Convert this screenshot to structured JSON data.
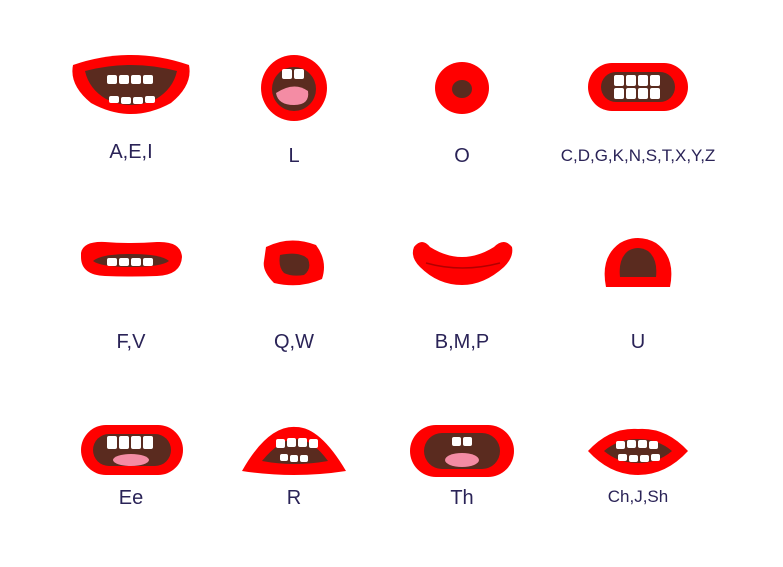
{
  "colors": {
    "lip": "#ff0000",
    "inner": "#5a2b1f",
    "teeth": "#ffffff",
    "tongue": "#f48ca4",
    "label": "#2a2357",
    "background": "#ffffff"
  },
  "mouths": [
    {
      "label": "A,E,I"
    },
    {
      "label": "L"
    },
    {
      "label": "O"
    },
    {
      "label": "C,D,G,K,N,S,T,X,Y,Z"
    },
    {
      "label": "F,V"
    },
    {
      "label": "Q,W"
    },
    {
      "label": "B,M,P"
    },
    {
      "label": "U"
    },
    {
      "label": "Ee"
    },
    {
      "label": "R"
    },
    {
      "label": "Th"
    },
    {
      "label": "Ch,J,Sh"
    }
  ]
}
